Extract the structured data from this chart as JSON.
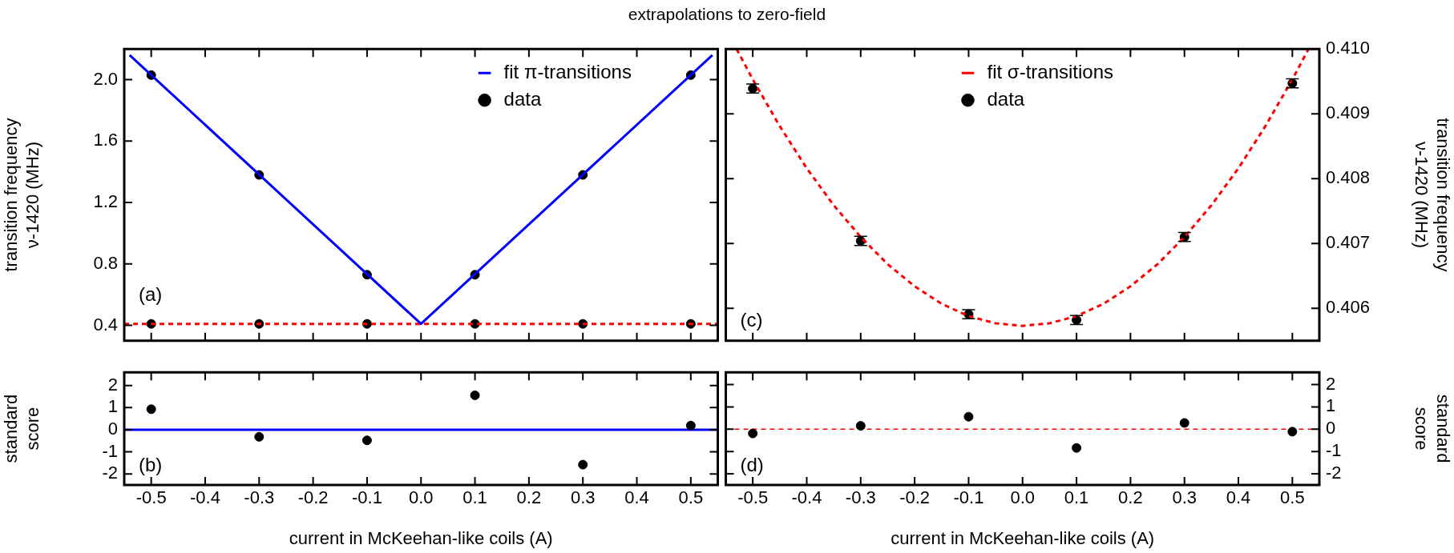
{
  "chart_data": [
    {
      "type": "scatter",
      "title": "extrapolations to zero-field",
      "ylabel": "transition frequency\nν-1420 (MHz)",
      "xlim": [
        -0.55,
        0.55
      ],
      "xticks": [
        -0.5,
        -0.4,
        -0.3,
        -0.2,
        -0.1,
        0,
        0.1,
        0.2,
        0.3,
        0.4,
        0.5
      ],
      "ylim": [
        0.3,
        2.2
      ],
      "yticks": [
        0.4,
        0.8,
        1.2,
        1.6,
        {
          "value": 2,
          "label": "2.0"
        }
      ],
      "tick_labels": "y",
      "legend": "top",
      "annotations": [
        "(a)"
      ],
      "series": [
        {
          "type": "line",
          "name": "fit π-transitions",
          "color": "#0000ff",
          "x": [
            -0.54,
            0,
            0.54
          ],
          "values": [
            2.16,
            0.41,
            2.16
          ]
        },
        {
          "name": "data",
          "color": "#000000",
          "marker": "circle",
          "x": [
            -0.5,
            -0.3,
            -0.1,
            0.1,
            0.3,
            0.5
          ],
          "values": [
            2.03,
            1.38,
            0.73,
            0.73,
            1.38,
            2.03
          ]
        },
        {
          "type": "line",
          "color": "#ff0000",
          "line_style": "dashed",
          "x": [
            -0.55,
            0.55
          ],
          "values": [
            0.41,
            0.41
          ]
        },
        {
          "color": "#000000",
          "marker": "circle",
          "x": [
            -0.5,
            -0.3,
            -0.1,
            0.1,
            0.3,
            0.5
          ],
          "values": [
            0.41,
            0.41,
            0.41,
            0.41,
            0.41,
            0.41
          ]
        }
      ]
    },
    {
      "type": "scatter",
      "xlabel": "current in McKeehan-like coils (A)",
      "ylabel": "standard\nscore",
      "xlim": [
        -0.55,
        0.55
      ],
      "xticks": [
        -0.5,
        -0.4,
        -0.3,
        -0.2,
        -0.1,
        {
          "value": 0,
          "label": "0.0"
        },
        0.1,
        0.2,
        0.3,
        0.4,
        0.5
      ],
      "ylim": [
        -2.5,
        2.6
      ],
      "yticks": [
        -2,
        -1,
        0,
        1,
        2
      ],
      "marker": "circle",
      "annotations": [
        "(b)"
      ],
      "ref_lines": [
        {
          "axis": "y",
          "value": 0,
          "color": "#0000ff",
          "line_style": "solid"
        }
      ],
      "series": [
        {
          "color": "#000000",
          "x": [
            -0.5,
            -0.3,
            -0.1,
            0.1,
            0.3,
            0.5
          ],
          "values": [
            0.93,
            -0.32,
            -0.48,
            1.56,
            -1.58,
            0.19
          ]
        }
      ]
    },
    {
      "type": "scatter",
      "y2label": "transition frequency\nν-1420 (MHz)",
      "xlim": [
        -0.55,
        0.55
      ],
      "xticks": [
        -0.5,
        -0.4,
        -0.3,
        -0.2,
        -0.1,
        0,
        0.1,
        0.2,
        0.3,
        0.4,
        0.5
      ],
      "y2lim": [
        0.4055,
        0.41
      ],
      "y2ticks": [
        0.406,
        0.407,
        0.408,
        0.409,
        {
          "value": 0.41,
          "label": "0.410"
        }
      ],
      "tick_labels": "y",
      "legend": "top",
      "annotations": [
        "(c)"
      ],
      "series": [
        {
          "type": "line",
          "axis": "y2",
          "name": "fit σ-transitions",
          "color": "#ff0000",
          "line_style": "dashed",
          "x": [
            -0.53,
            -0.5,
            -0.45,
            -0.4,
            -0.35,
            -0.3,
            -0.25,
            -0.2,
            -0.15,
            -0.1,
            -0.05,
            0,
            0.05,
            0.1,
            0.15,
            0.2,
            0.25,
            0.3,
            0.35,
            0.4,
            0.45,
            0.5,
            0.53
          ],
          "values": [
            0.41,
            0.40953,
            0.40881,
            0.40816,
            0.40759,
            0.4071,
            0.40668,
            0.40634,
            0.40607,
            0.40588,
            0.40577,
            0.40573,
            0.40577,
            0.40588,
            0.40607,
            0.40634,
            0.40668,
            0.4071,
            0.40759,
            0.40816,
            0.40881,
            0.40953,
            0.41
          ]
        },
        {
          "axis": "y2",
          "name": "data",
          "color": "#000000",
          "marker": "circle",
          "x": [
            -0.5,
            -0.3,
            -0.1,
            0.1,
            0.3,
            0.5
          ],
          "values": [
            0.40939,
            0.40704,
            0.40591,
            0.40582,
            0.4071,
            0.40947
          ],
          "errors": [
            7e-05,
            7e-05,
            7e-05,
            7e-05,
            7e-05,
            7e-05
          ]
        }
      ]
    },
    {
      "type": "scatter",
      "xlabel": "current in McKeehan-like coils (A)",
      "y2label": "standard\nscore",
      "xlim": [
        -0.55,
        0.55
      ],
      "xticks": [
        -0.5,
        -0.4,
        -0.3,
        -0.2,
        -0.1,
        {
          "value": 0,
          "label": "0.0"
        },
        0.1,
        0.2,
        0.3,
        0.4,
        0.5
      ],
      "y2lim": [
        -2.5,
        2.55
      ],
      "y2ticks": [
        -2,
        -1,
        0,
        1,
        2
      ],
      "marker": "circle",
      "annotations": [
        "(d)"
      ],
      "ref_lines": [
        {
          "axis": "y2",
          "value": 0,
          "color": "#ff0000",
          "line_style": "dashed"
        }
      ],
      "series": [
        {
          "axis": "y2",
          "color": "#000000",
          "x": [
            -0.5,
            -0.3,
            -0.1,
            0.1,
            0.3,
            0.5
          ],
          "values": [
            -0.19,
            0.15,
            0.56,
            -0.84,
            0.28,
            -0.11
          ]
        }
      ]
    }
  ]
}
